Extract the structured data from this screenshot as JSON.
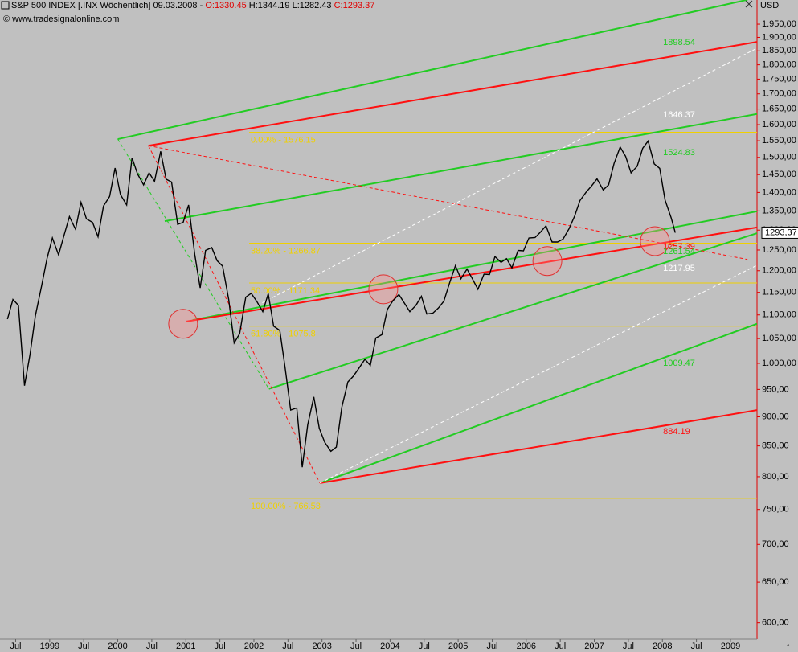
{
  "chart_data": {
    "type": "line",
    "title": "S&P 500 INDEX [.INX  Wöchentlich] 09.03.2008 -",
    "ohlc": [
      {
        "label": "O:1330.45",
        "color": "#e00000"
      },
      {
        "label": "H:1344.19",
        "color": "#000000"
      },
      {
        "label": "L:1282.43",
        "color": "#000000"
      },
      {
        "label": "C:1293.37",
        "color": "#e00000"
      }
    ],
    "copyright": "© www.tradesignalonline.com",
    "y_unit": "USD",
    "color": "#000000",
    "log_y": true,
    "xlim": [
      1998.27,
      2009.39
    ],
    "ylim": [
      581,
      2045
    ],
    "xticks": [
      {
        "value": 1998.5,
        "label": "Jul"
      },
      1999,
      {
        "value": 1999.5,
        "label": "Jul"
      },
      2000,
      {
        "value": 2000.5,
        "label": "Jul"
      },
      2001,
      {
        "value": 2001.5,
        "label": "Jul"
      },
      2002,
      {
        "value": 2002.5,
        "label": "Jul"
      },
      2003,
      {
        "value": 2003.5,
        "label": "Jul"
      },
      2004,
      {
        "value": 2004.5,
        "label": "Jul"
      },
      2005,
      {
        "value": 2005.5,
        "label": "Jul"
      },
      2006,
      {
        "value": 2006.5,
        "label": "Jul"
      },
      2007,
      {
        "value": 2007.5,
        "label": "Jul"
      },
      2008,
      {
        "value": 2008.5,
        "label": "Jul"
      },
      2009
    ],
    "yticks": [
      {
        "value": 600,
        "label": "600,00"
      },
      {
        "value": 650,
        "label": "650,00"
      },
      {
        "value": 700,
        "label": "700,00"
      },
      {
        "value": 750,
        "label": "750,00"
      },
      {
        "value": 800,
        "label": "800,00"
      },
      {
        "value": 850,
        "label": "850,00"
      },
      {
        "value": 900,
        "label": "900,00"
      },
      {
        "value": 950,
        "label": "950,00"
      },
      {
        "value": 1000,
        "label": "1.000,00"
      },
      {
        "value": 1050,
        "label": "1.050,00"
      },
      {
        "value": 1100,
        "label": "1.100,00"
      },
      {
        "value": 1150,
        "label": "1.150,00"
      },
      {
        "value": 1200,
        "label": "1.200,00"
      },
      {
        "value": 1250,
        "label": "1.250,00"
      },
      {
        "value": 1300,
        "label": "1.300,00"
      },
      {
        "value": 1350,
        "label": "1.350,00"
      },
      {
        "value": 1400,
        "label": "1.400,00"
      },
      {
        "value": 1450,
        "label": "1.450,00"
      },
      {
        "value": 1500,
        "label": "1.500,00"
      },
      {
        "value": 1550,
        "label": "1.550,00"
      },
      {
        "value": 1600,
        "label": "1.600,00"
      },
      {
        "value": 1650,
        "label": "1.650,00"
      },
      {
        "value": 1700,
        "label": "1.700,00"
      },
      {
        "value": 1750,
        "label": "1.750,00"
      },
      {
        "value": 1800,
        "label": "1.800,00"
      },
      {
        "value": 1850,
        "label": "1.850,00"
      },
      {
        "value": 1900,
        "label": "1.900,00"
      },
      {
        "value": 1950,
        "label": "1.950,00"
      }
    ],
    "last": {
      "value": 1293.37,
      "label": "1293,37"
    },
    "x": [
      1998.38,
      1998.46,
      1998.54,
      1998.63,
      1998.71,
      1998.79,
      1998.88,
      1998.96,
      1999.04,
      1999.13,
      1999.21,
      1999.29,
      1999.38,
      1999.46,
      1999.54,
      1999.63,
      1999.71,
      1999.79,
      1999.88,
      1999.96,
      2000.04,
      2000.13,
      2000.21,
      2000.29,
      2000.38,
      2000.46,
      2000.54,
      2000.63,
      2000.71,
      2000.79,
      2000.88,
      2000.96,
      2001.04,
      2001.13,
      2001.21,
      2001.29,
      2001.38,
      2001.46,
      2001.54,
      2001.63,
      2001.71,
      2001.79,
      2001.88,
      2001.96,
      2002.04,
      2002.13,
      2002.21,
      2002.29,
      2002.38,
      2002.46,
      2002.54,
      2002.63,
      2002.71,
      2002.79,
      2002.88,
      2002.96,
      2003.04,
      2003.13,
      2003.21,
      2003.29,
      2003.38,
      2003.46,
      2003.54,
      2003.63,
      2003.71,
      2003.79,
      2003.88,
      2003.96,
      2004.04,
      2004.13,
      2004.21,
      2004.29,
      2004.38,
      2004.46,
      2004.54,
      2004.63,
      2004.71,
      2004.79,
      2004.88,
      2004.96,
      2005.04,
      2005.13,
      2005.21,
      2005.29,
      2005.38,
      2005.46,
      2005.54,
      2005.63,
      2005.71,
      2005.79,
      2005.88,
      2005.96,
      2006.04,
      2006.13,
      2006.21,
      2006.29,
      2006.38,
      2006.46,
      2006.54,
      2006.63,
      2006.71,
      2006.79,
      2006.88,
      2006.96,
      2007.04,
      2007.13,
      2007.21,
      2007.29,
      2007.38,
      2007.46,
      2007.54,
      2007.63,
      2007.71,
      2007.79,
      2007.88,
      2007.96,
      2008.04,
      2008.13,
      2008.19
    ],
    "values": [
      1091,
      1134,
      1121,
      957,
      1017,
      1099,
      1164,
      1229,
      1280,
      1238,
      1286,
      1335,
      1302,
      1373,
      1329,
      1320,
      1283,
      1363,
      1389,
      1469,
      1394,
      1366,
      1499,
      1452,
      1421,
      1455,
      1431,
      1518,
      1437,
      1429,
      1315,
      1320,
      1366,
      1240,
      1160,
      1249,
      1256,
      1224,
      1211,
      1134,
      1041,
      1060,
      1139,
      1148,
      1130,
      1107,
      1147,
      1076,
      1067,
      990,
      912,
      916,
      815,
      886,
      936,
      880,
      856,
      841,
      848,
      917,
      964,
      975,
      990,
      1008,
      996,
      1051,
      1058,
      1112,
      1131,
      1145,
      1126,
      1107,
      1121,
      1141,
      1102,
      1104,
      1115,
      1130,
      1174,
      1212,
      1181,
      1204,
      1181,
      1157,
      1192,
      1191,
      1234,
      1220,
      1229,
      1207,
      1249,
      1248,
      1280,
      1281,
      1295,
      1311,
      1270,
      1270,
      1277,
      1304,
      1336,
      1378,
      1401,
      1418,
      1438,
      1407,
      1421,
      1482,
      1531,
      1503,
      1455,
      1474,
      1527,
      1549,
      1481,
      1468,
      1379,
      1331,
      1293.37
    ],
    "fib_levels": [
      {
        "value": 1576.15,
        "label": "0.00% - 1576.15"
      },
      {
        "value": 1266.87,
        "label": "38.20% - 1266.87"
      },
      {
        "value": 1171.34,
        "label": "50.00% - 1171.34"
      },
      {
        "value": 1075.8,
        "label": "61.80% - 1075.8"
      },
      {
        "value": 766.53,
        "label": "100.00% - 766.53"
      }
    ],
    "fib_start": 2001.93,
    "fib_color": "#f0d000",
    "lines": [
      {
        "color": "#22cc22",
        "dashed": false,
        "x": [
          2000.0,
          2009.25
        ],
        "y": [
          1555,
          2046
        ]
      },
      {
        "color": "#22cc22",
        "dashed": false,
        "x": [
          2000.69,
          2009.39
        ],
        "y": [
          1323,
          1634
        ]
      },
      {
        "color": "#22cc22",
        "dashed": false,
        "x": [
          2001.1,
          2009.39
        ],
        "y": [
          1089,
          1349
        ]
      },
      {
        "color": "#22cc22",
        "dashed": false,
        "x": [
          2002.22,
          2009.39
        ],
        "y": [
          951,
          1292
        ]
      },
      {
        "color": "#22cc22",
        "dashed": false,
        "x": [
          2002.97,
          2009.39
        ],
        "y": [
          790,
          1081
        ]
      },
      {
        "color": "#22cc22",
        "dashed": true,
        "x": [
          2000.0,
          2002.22
        ],
        "y": [
          1555,
          951
        ]
      },
      {
        "color": "#ff1010",
        "dashed": false,
        "x": [
          2000.45,
          2009.39
        ],
        "y": [
          1535,
          1883
        ]
      },
      {
        "color": "#ff1010",
        "dashed": false,
        "x": [
          2001.01,
          2009.39
        ],
        "y": [
          1086,
          1307
        ]
      },
      {
        "color": "#ff1010",
        "dashed": false,
        "x": [
          2002.97,
          2009.39
        ],
        "y": [
          790,
          912
        ]
      },
      {
        "color": "#ff1010",
        "dashed": true,
        "x": [
          2000.45,
          2009.25
        ],
        "y": [
          1535,
          1227
        ]
      },
      {
        "color": "#ff1010",
        "dashed": true,
        "x": [
          2000.45,
          2002.97
        ],
        "y": [
          1535,
          790
        ]
      },
      {
        "color": "#ffffff",
        "dashed": true,
        "x": [
          2002.97,
          2009.39
        ],
        "y": [
          790,
          1213
        ]
      },
      {
        "color": "#ffffff",
        "dashed": true,
        "x": [
          2002.05,
          2009.39
        ],
        "y": [
          1121,
          1860
        ]
      }
    ],
    "circles": [
      {
        "x": 2000.96,
        "y": 1081
      },
      {
        "x": 2003.9,
        "y": 1157
      },
      {
        "x": 2006.31,
        "y": 1223
      },
      {
        "x": 2007.89,
        "y": 1272
      }
    ],
    "annotations": [
      {
        "text": "1898.54",
        "color": "#22cc22",
        "x": 2008.01,
        "y": 1880
      },
      {
        "text": "1646.37",
        "color": "#ffffff",
        "x": 2008.01,
        "y": 1631
      },
      {
        "text": "1524.83",
        "color": "#22cc22",
        "x": 2008.01,
        "y": 1514
      },
      {
        "text": "1257.39",
        "color": "#ff1010",
        "x": 2008.01,
        "y": 1258
      },
      {
        "text": "1261.54",
        "color": "#22cc22",
        "x": 2008.01,
        "y": 1246
      },
      {
        "text": "1217.95",
        "color": "#ffffff",
        "x": 2008.01,
        "y": 1205
      },
      {
        "text": "1009.47",
        "color": "#22cc22",
        "x": 2008.01,
        "y": 1000
      },
      {
        "text": "884.19",
        "color": "#ff1010",
        "x": 2008.01,
        "y": 874
      }
    ]
  }
}
